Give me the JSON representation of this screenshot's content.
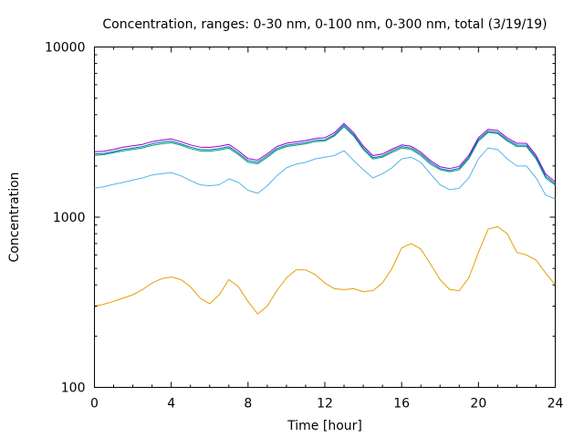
{
  "chart_data": {
    "type": "line",
    "title": "Concentration, ranges: 0-30 nm, 0-100 nm, 0-300 nm, total (3/19/19)",
    "xlabel": "Time [hour]",
    "ylabel": "Concentration",
    "xlim": [
      0,
      24
    ],
    "ylim": [
      100,
      10000
    ],
    "yscale": "log",
    "grid": false,
    "xticks": [
      "0",
      "4",
      "8",
      "12",
      "16",
      "20",
      "24"
    ],
    "yticks": [
      "100",
      "1000",
      "10000"
    ],
    "series": [
      {
        "color": "#e69f00",
        "x": [
          0,
          0.5,
          1,
          1.5,
          2,
          2.5,
          3,
          3.5,
          4,
          4.5,
          5,
          5.5,
          6,
          6.5,
          7,
          7.5,
          8,
          8.5,
          9,
          9.5,
          10,
          10.5,
          11,
          11.5,
          12,
          12.5,
          13,
          13.5,
          14,
          14.5,
          15,
          15.5,
          16,
          16.5,
          17,
          17.5,
          18,
          18.5,
          19,
          19.5,
          20,
          20.5,
          21,
          21.5,
          22,
          22.5,
          23,
          23.5,
          24
        ],
        "values": [
          300,
          308,
          320,
          335,
          350,
          375,
          410,
          435,
          445,
          430,
          390,
          335,
          310,
          350,
          430,
          390,
          320,
          270,
          300,
          370,
          440,
          490,
          490,
          460,
          410,
          380,
          375,
          380,
          365,
          370,
          410,
          500,
          660,
          700,
          650,
          530,
          430,
          375,
          370,
          440,
          620,
          850,
          880,
          800,
          620,
          600,
          560,
          470,
          400
        ]
      },
      {
        "color": "#56b4e9",
        "x": [
          0,
          0.5,
          1,
          1.5,
          2,
          2.5,
          3,
          3.5,
          4,
          4.5,
          5,
          5.5,
          6,
          6.5,
          7,
          7.5,
          8,
          8.5,
          9,
          9.5,
          10,
          10.5,
          11,
          11.5,
          12,
          12.5,
          13,
          13.5,
          14,
          14.5,
          15,
          15.5,
          16,
          16.5,
          17,
          17.5,
          18,
          18.5,
          19,
          19.5,
          20,
          20.5,
          21,
          21.5,
          22,
          22.5,
          23,
          23.5,
          24
        ],
        "values": [
          1480,
          1510,
          1560,
          1600,
          1650,
          1700,
          1770,
          1800,
          1830,
          1750,
          1640,
          1550,
          1530,
          1550,
          1680,
          1600,
          1440,
          1380,
          1530,
          1750,
          1950,
          2050,
          2100,
          2200,
          2250,
          2300,
          2460,
          2150,
          1900,
          1700,
          1800,
          1950,
          2200,
          2250,
          2100,
          1800,
          1550,
          1450,
          1480,
          1700,
          2200,
          2550,
          2500,
          2200,
          2000,
          2000,
          1700,
          1350,
          1280
        ]
      },
      {
        "color": "#009e73",
        "x": [
          0,
          0.5,
          1,
          1.5,
          2,
          2.5,
          3,
          3.5,
          4,
          4.5,
          5,
          5.5,
          6,
          6.5,
          7,
          7.5,
          8,
          8.5,
          9,
          9.5,
          10,
          10.5,
          11,
          11.5,
          12,
          12.5,
          13,
          13.5,
          14,
          14.5,
          15,
          15.5,
          16,
          16.5,
          17,
          17.5,
          18,
          18.5,
          19,
          19.5,
          20,
          20.5,
          21,
          21.5,
          22,
          22.5,
          23,
          23.5,
          24
        ],
        "values": [
          2310,
          2330,
          2390,
          2450,
          2500,
          2550,
          2640,
          2700,
          2740,
          2650,
          2530,
          2450,
          2440,
          2480,
          2550,
          2330,
          2100,
          2060,
          2250,
          2480,
          2600,
          2650,
          2700,
          2780,
          2800,
          3000,
          3400,
          3000,
          2500,
          2200,
          2250,
          2400,
          2550,
          2500,
          2300,
          2050,
          1900,
          1850,
          1900,
          2200,
          2800,
          3150,
          3100,
          2800,
          2600,
          2600,
          2200,
          1700,
          1540
        ]
      },
      {
        "color": "#0072b2",
        "x": [
          0,
          0.5,
          1,
          1.5,
          2,
          2.5,
          3,
          3.5,
          4,
          4.5,
          5,
          5.5,
          6,
          6.5,
          7,
          7.5,
          8,
          8.5,
          9,
          9.5,
          10,
          10.5,
          11,
          11.5,
          12,
          12.5,
          13,
          13.5,
          14,
          14.5,
          15,
          15.5,
          16,
          16.5,
          17,
          17.5,
          18,
          18.5,
          19,
          19.5,
          20,
          20.5,
          21,
          21.5,
          22,
          22.5,
          23,
          23.5,
          24
        ],
        "values": [
          2350,
          2370,
          2430,
          2500,
          2550,
          2600,
          2700,
          2760,
          2800,
          2700,
          2580,
          2500,
          2490,
          2530,
          2600,
          2380,
          2150,
          2100,
          2300,
          2530,
          2650,
          2700,
          2750,
          2830,
          2850,
          3050,
          3480,
          3050,
          2550,
          2240,
          2290,
          2450,
          2600,
          2550,
          2350,
          2100,
          1930,
          1880,
          1940,
          2250,
          2860,
          3200,
          3150,
          2850,
          2650,
          2650,
          2250,
          1740,
          1570
        ]
      },
      {
        "color": "#9400d3",
        "x": [
          0,
          0.5,
          1,
          1.5,
          2,
          2.5,
          3,
          3.5,
          4,
          4.5,
          5,
          5.5,
          6,
          6.5,
          7,
          7.5,
          8,
          8.5,
          9,
          9.5,
          10,
          10.5,
          11,
          11.5,
          12,
          12.5,
          13,
          13.5,
          14,
          14.5,
          15,
          15.5,
          16,
          16.5,
          17,
          17.5,
          18,
          18.5,
          19,
          19.5,
          20,
          20.5,
          21,
          21.5,
          22,
          22.5,
          23,
          23.5,
          24
        ],
        "values": [
          2420,
          2440,
          2500,
          2580,
          2630,
          2680,
          2780,
          2840,
          2880,
          2780,
          2660,
          2580,
          2570,
          2610,
          2680,
          2450,
          2210,
          2160,
          2360,
          2600,
          2720,
          2770,
          2820,
          2900,
          2930,
          3130,
          3560,
          3130,
          2620,
          2300,
          2350,
          2510,
          2660,
          2610,
          2410,
          2150,
          1980,
          1930,
          1990,
          2310,
          2930,
          3280,
          3230,
          2920,
          2720,
          2720,
          2310,
          1790,
          1610
        ]
      }
    ]
  }
}
